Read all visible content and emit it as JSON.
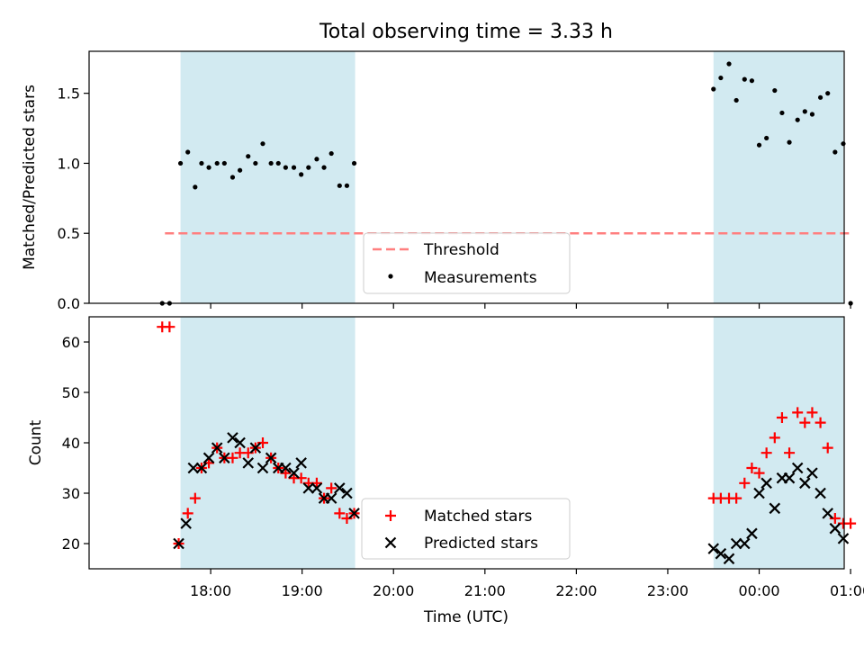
{
  "figure": {
    "title": "Total observing time = 3.33 h",
    "xlabel": "Time (UTC)"
  },
  "colors": {
    "shade": "#add8e6",
    "threshold": "#ff7f7f",
    "measurements": "#000000",
    "matched": "#ff0000",
    "predicted": "#000000"
  },
  "chart_data": [
    {
      "type": "scatter",
      "ylabel": "Matched/Predicted stars",
      "xlim_hours": [
        16.67,
        24.93
      ],
      "ylim": [
        0,
        1.8
      ],
      "yticks": [
        0.0,
        0.5,
        1.0,
        1.5
      ],
      "ytick_labels": [
        "0.0",
        "0.5",
        "1.0",
        "1.5"
      ],
      "shaded_intervals": [
        [
          17.67,
          19.58
        ],
        [
          23.5,
          24.92
        ]
      ],
      "threshold": {
        "name": "Threshold",
        "value": 0.5,
        "x_range": [
          17.5,
          25.0
        ]
      },
      "series": [
        {
          "name": "Measurements",
          "x": [
            17.47,
            17.55,
            17.67,
            17.75,
            17.83,
            17.9,
            17.98,
            18.07,
            18.15,
            18.24,
            18.32,
            18.41,
            18.49,
            18.57,
            18.66,
            18.74,
            18.82,
            18.91,
            18.99,
            19.07,
            19.16,
            19.24,
            19.32,
            19.41,
            19.49,
            19.57,
            23.5,
            23.58,
            23.67,
            23.75,
            23.84,
            23.92,
            24.0,
            24.08,
            24.17,
            24.25,
            24.33,
            24.42,
            24.5,
            24.58,
            24.67,
            24.75,
            24.83,
            24.92,
            25.0
          ],
          "y": [
            0.0,
            0.0,
            1.0,
            1.08,
            0.83,
            1.0,
            0.97,
            1.0,
            1.0,
            0.9,
            0.95,
            1.05,
            1.0,
            1.14,
            1.0,
            1.0,
            0.97,
            0.97,
            0.92,
            0.97,
            1.03,
            0.97,
            1.07,
            0.84,
            0.84,
            1.0,
            1.53,
            1.61,
            1.71,
            1.45,
            1.6,
            1.59,
            1.13,
            1.18,
            1.52,
            1.36,
            1.15,
            1.31,
            1.37,
            1.35,
            1.47,
            1.5,
            1.08,
            1.14,
            0.0
          ]
        }
      ],
      "legend": [
        "Threshold",
        "Measurements"
      ],
      "legend_location": "lower center"
    },
    {
      "type": "scatter",
      "ylabel": "Count",
      "xlim_hours": [
        16.67,
        24.93
      ],
      "ylim": [
        15,
        65
      ],
      "yticks": [
        20,
        30,
        40,
        50,
        60
      ],
      "ytick_labels": [
        "20",
        "30",
        "40",
        "50",
        "60"
      ],
      "xticks_hours": [
        18,
        19,
        20,
        21,
        22,
        23,
        24,
        25
      ],
      "xtick_labels": [
        "18:00",
        "19:00",
        "20:00",
        "21:00",
        "22:00",
        "23:00",
        "00:00",
        "01:00"
      ],
      "shaded_intervals": [
        [
          17.67,
          19.58
        ],
        [
          23.5,
          24.92
        ]
      ],
      "series": [
        {
          "name": "Matched stars",
          "x": [
            17.47,
            17.55,
            17.65,
            17.75,
            17.83,
            17.9,
            17.98,
            18.07,
            18.15,
            18.24,
            18.32,
            18.41,
            18.49,
            18.57,
            18.66,
            18.74,
            18.82,
            18.91,
            18.99,
            19.07,
            19.16,
            19.24,
            19.32,
            19.41,
            19.49,
            19.57,
            23.5,
            23.58,
            23.67,
            23.75,
            23.84,
            23.92,
            24.0,
            24.08,
            24.17,
            24.25,
            24.33,
            24.42,
            24.5,
            24.58,
            24.67,
            24.75,
            24.83,
            24.92,
            25.0
          ],
          "y": [
            63,
            63,
            20,
            26,
            29,
            35,
            36,
            39,
            37,
            37,
            38,
            38,
            39,
            40,
            37,
            35,
            34,
            33,
            33,
            32,
            32,
            29,
            31,
            26,
            25,
            26,
            29,
            29,
            29,
            29,
            32,
            35,
            34,
            38,
            41,
            45,
            38,
            46,
            44,
            46,
            44,
            39,
            25,
            24,
            24
          ]
        },
        {
          "name": "Predicted stars",
          "x": [
            17.65,
            17.73,
            17.81,
            17.9,
            17.98,
            18.07,
            18.15,
            18.24,
            18.32,
            18.41,
            18.49,
            18.57,
            18.66,
            18.74,
            18.82,
            18.91,
            18.99,
            19.07,
            19.16,
            19.24,
            19.32,
            19.41,
            19.49,
            19.57,
            23.5,
            23.58,
            23.67,
            23.75,
            23.84,
            23.92,
            24.0,
            24.08,
            24.17,
            24.25,
            24.33,
            24.42,
            24.5,
            24.58,
            24.67,
            24.75,
            24.83,
            24.92
          ],
          "y": [
            20,
            24,
            35,
            35,
            37,
            39,
            37,
            41,
            40,
            36,
            39,
            35,
            37,
            35,
            35,
            34,
            36,
            31,
            31,
            29,
            29,
            31,
            30,
            26,
            19,
            18,
            17,
            20,
            20,
            22,
            30,
            32,
            27,
            33,
            33,
            35,
            32,
            34,
            30,
            26,
            23,
            21
          ]
        }
      ],
      "legend": [
        "Matched stars",
        "Predicted stars"
      ],
      "legend_location": "lower center"
    }
  ]
}
